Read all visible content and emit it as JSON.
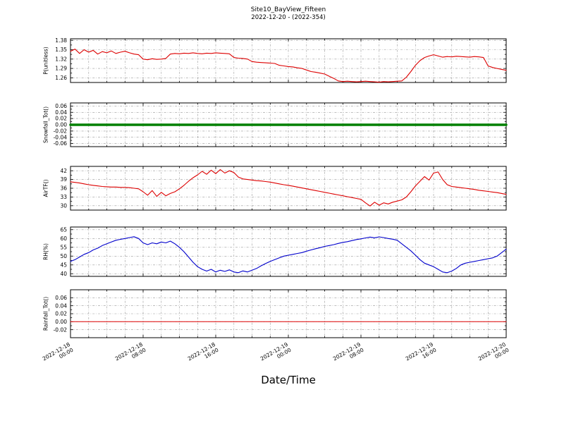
{
  "chart_data": {
    "type": "line",
    "title": "Site10_BayView_Fifteen",
    "subtitle": "2022-12-20 - (2022-354)",
    "xlabel": "Date/Time",
    "x_range": [
      0,
      48
    ],
    "x_unit": "hours since 2022-12-18 00:00",
    "x_major_step": 8,
    "x_minor_step": 2,
    "x_grid_step": 2,
    "xticks": [
      0,
      8,
      16,
      24,
      32,
      40,
      48
    ],
    "xtick_labels": [
      [
        "2022-12-18",
        "00:00"
      ],
      [
        "2022-12-18",
        "08:00"
      ],
      [
        "2022-12-18",
        "16:00"
      ],
      [
        "2022-12-19",
        "00:00"
      ],
      [
        "2022-12-19",
        "08:00"
      ],
      [
        "2022-12-19",
        "16:00"
      ],
      [
        "2022-12-20",
        "00:00"
      ]
    ],
    "grid": true,
    "legend": "none",
    "panels": [
      {
        "id": "p",
        "ylabel": "P(unitless)",
        "color": "#dd0000",
        "line_width": 1.1,
        "ylim": [
          1.245,
          1.385
        ],
        "yticks": [
          1.38,
          1.35,
          1.32,
          1.29,
          1.26
        ],
        "ytick_labels": [
          "1.38",
          "1.35",
          "1.32",
          "1.29",
          "1.26"
        ],
        "sample_interval_hours": 0.5,
        "values": [
          1.345,
          1.352,
          1.338,
          1.35,
          1.342,
          1.348,
          1.336,
          1.344,
          1.34,
          1.346,
          1.338,
          1.342,
          1.345,
          1.34,
          1.336,
          1.334,
          1.32,
          1.318,
          1.321,
          1.319,
          1.32,
          1.322,
          1.336,
          1.338,
          1.337,
          1.339,
          1.338,
          1.34,
          1.338,
          1.337,
          1.339,
          1.338,
          1.34,
          1.339,
          1.338,
          1.337,
          1.325,
          1.323,
          1.322,
          1.32,
          1.312,
          1.31,
          1.309,
          1.308,
          1.307,
          1.306,
          1.3,
          1.298,
          1.296,
          1.295,
          1.292,
          1.29,
          1.285,
          1.28,
          1.278,
          1.275,
          1.272,
          1.265,
          1.258,
          1.25,
          1.248,
          1.249,
          1.248,
          1.247,
          1.248,
          1.249,
          1.248,
          1.247,
          1.246,
          1.248,
          1.247,
          1.248,
          1.249,
          1.25,
          1.262,
          1.28,
          1.3,
          1.315,
          1.325,
          1.33,
          1.334,
          1.33,
          1.326,
          1.328,
          1.327,
          1.329,
          1.328,
          1.327,
          1.326,
          1.328,
          1.327,
          1.325,
          1.298,
          1.293,
          1.29,
          1.287,
          1.284
        ]
      },
      {
        "id": "snowfall",
        "ylabel": "Snowfall_Tot()",
        "color": "#008000",
        "line_width": 3.5,
        "ylim": [
          -0.07,
          0.07
        ],
        "yticks": [
          0.06,
          0.04,
          0.02,
          0.0,
          -0.02,
          -0.04,
          -0.06
        ],
        "ytick_labels": [
          "0.06",
          "0.04",
          "0.02",
          "0.00",
          "-0.02",
          "-0.04",
          "-0.06"
        ],
        "sample_interval_hours": 0.25,
        "values": [
          0,
          0
        ]
      },
      {
        "id": "airtf",
        "ylabel": "AirTF()",
        "color": "#dd0000",
        "line_width": 1.1,
        "ylim": [
          28.5,
          43.5
        ],
        "yticks": [
          42,
          39,
          36,
          33,
          30
        ],
        "ytick_labels": [
          "42",
          "39",
          "36",
          "33",
          "30"
        ],
        "sample_interval_hours": 0.5,
        "values": [
          38.2,
          38.0,
          37.8,
          37.5,
          37.2,
          37.0,
          36.8,
          36.6,
          36.5,
          36.4,
          36.4,
          36.3,
          36.3,
          36.2,
          36.0,
          35.8,
          34.8,
          33.6,
          35.2,
          33.2,
          34.6,
          33.4,
          34.2,
          34.8,
          35.8,
          37.0,
          38.4,
          39.6,
          40.6,
          41.8,
          40.8,
          42.2,
          41.0,
          42.4,
          41.2,
          42.0,
          41.4,
          39.8,
          39.2,
          39.0,
          38.8,
          38.6,
          38.5,
          38.3,
          38.1,
          37.8,
          37.5,
          37.2,
          37.0,
          36.7,
          36.4,
          36.1,
          35.8,
          35.5,
          35.2,
          34.9,
          34.6,
          34.3,
          34.0,
          33.7,
          33.4,
          33.1,
          32.8,
          32.5,
          32.2,
          31.0,
          29.9,
          31.2,
          30.2,
          31.0,
          30.6,
          31.2,
          31.6,
          32.0,
          33.0,
          34.8,
          36.8,
          38.4,
          40.0,
          38.8,
          41.2,
          41.6,
          39.0,
          37.2,
          36.6,
          36.4,
          36.2,
          36.0,
          35.8,
          35.6,
          35.3,
          35.1,
          34.9,
          34.7,
          34.5,
          34.2,
          33.9
        ]
      },
      {
        "id": "rh",
        "ylabel": "RH(%)",
        "color": "#0000cc",
        "line_width": 1.1,
        "ylim": [
          38.5,
          66.5
        ],
        "yticks": [
          65,
          60,
          55,
          50,
          45,
          40
        ],
        "ytick_labels": [
          "65",
          "60",
          "55",
          "50",
          "45",
          "40"
        ],
        "sample_interval_hours": 0.5,
        "values": [
          47.0,
          48.0,
          49.5,
          51.0,
          52.0,
          53.5,
          54.5,
          56.0,
          57.0,
          58.0,
          59.0,
          59.5,
          60.0,
          60.5,
          61.0,
          60.0,
          57.5,
          56.5,
          57.5,
          57.0,
          58.0,
          57.5,
          58.5,
          57.0,
          55.0,
          52.5,
          49.5,
          46.5,
          44.0,
          42.5,
          41.5,
          42.5,
          41.0,
          42.0,
          41.3,
          42.2,
          41.0,
          40.6,
          41.6,
          41.0,
          42.0,
          43.0,
          44.5,
          45.8,
          47.0,
          48.0,
          49.0,
          50.0,
          50.5,
          51.0,
          51.5,
          52.0,
          52.8,
          53.5,
          54.2,
          54.8,
          55.5,
          56.0,
          56.5,
          57.2,
          57.8,
          58.2,
          58.8,
          59.4,
          59.8,
          60.3,
          60.8,
          60.4,
          60.9,
          60.5,
          60.0,
          59.6,
          59.0,
          57.0,
          55.0,
          53.0,
          50.5,
          48.0,
          46.0,
          45.0,
          44.0,
          42.5,
          41.0,
          40.6,
          41.5,
          43.0,
          45.0,
          46.0,
          46.5,
          47.0,
          47.5,
          48.0,
          48.5,
          49.0,
          50.0,
          52.0,
          54.0
        ]
      },
      {
        "id": "rainfall",
        "ylabel": "Rainfall_Tot()",
        "color": "#dd0000",
        "line_width": 1.0,
        "ylim": [
          -0.04,
          0.08
        ],
        "yticks": [
          0.06,
          0.04,
          0.02,
          0.0,
          -0.02
        ],
        "ytick_labels": [
          "0.06",
          "0.04",
          "0.02",
          "0.00",
          "-0.02"
        ],
        "sample_interval_hours": 0.25,
        "values": [
          0,
          0
        ]
      }
    ]
  }
}
